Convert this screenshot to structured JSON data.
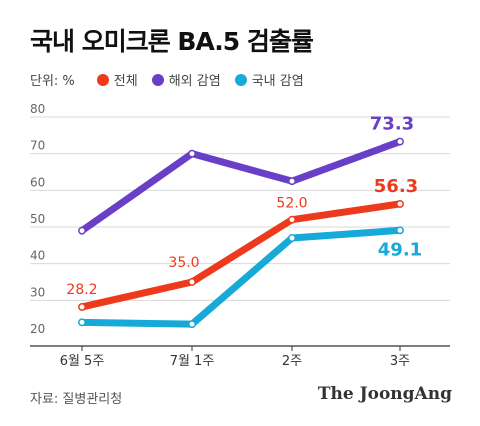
{
  "title": "국내 오미크론 BA.5 검출률",
  "unit_label": "단위: %",
  "source": "자료: 질병관리청",
  "publisher": "The JoongAng",
  "colors": {
    "total": "#ee3a1c",
    "overseas": "#6a3fc8",
    "domestic": "#17a9d8"
  },
  "chart_data": {
    "type": "line",
    "categories": [
      "6월 5주",
      "7월 1주",
      "2주",
      "3주"
    ],
    "ylim": [
      20,
      80
    ],
    "yticks": [
      20,
      30,
      40,
      50,
      60,
      70,
      80
    ],
    "grid": true,
    "legend_position": "top-left",
    "series": [
      {
        "name": "전체",
        "key": "total",
        "values": [
          28.2,
          35.0,
          52.0,
          56.3
        ],
        "labels": [
          "28.2",
          "35.0",
          "52.0",
          "56.3"
        ]
      },
      {
        "name": "해외 감염",
        "key": "overseas",
        "values": [
          49.0,
          70.0,
          62.5,
          73.3
        ],
        "labels": [
          "",
          "",
          "",
          "73.3"
        ]
      },
      {
        "name": "국내 감염",
        "key": "domestic",
        "values": [
          24.0,
          23.5,
          47.0,
          49.1
        ],
        "labels": [
          "",
          "",
          "",
          "49.1"
        ]
      }
    ]
  }
}
